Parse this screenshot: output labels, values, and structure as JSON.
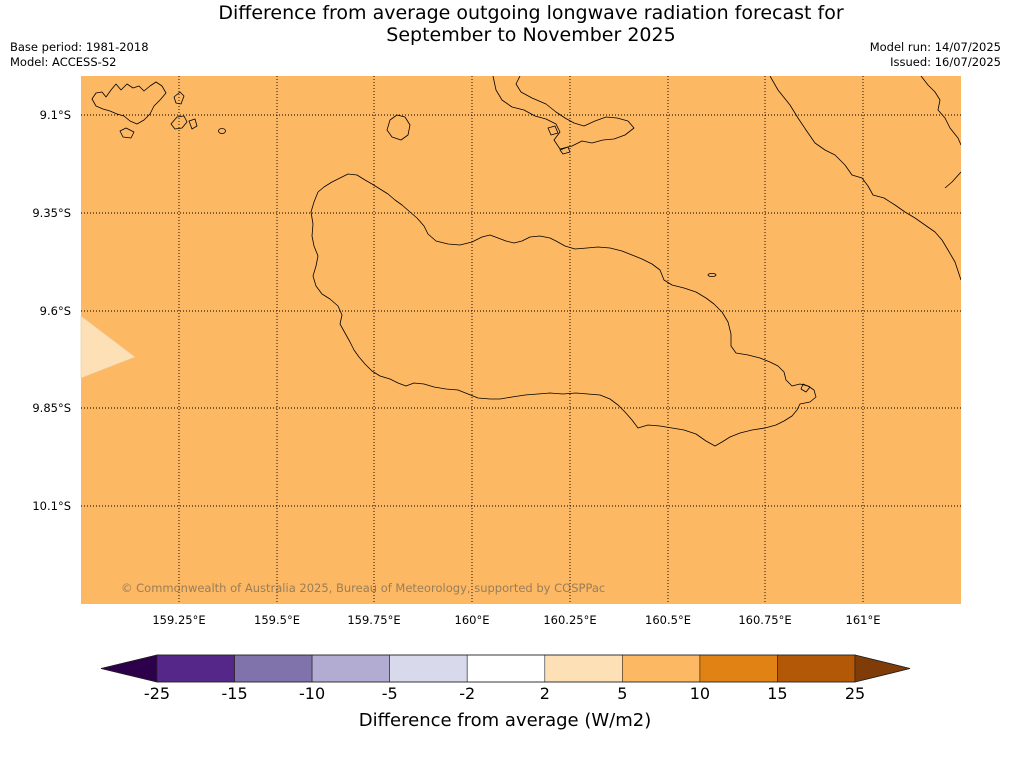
{
  "title": {
    "line1": "Difference from average outgoing longwave radiation forecast for",
    "line2": "September to November 2025"
  },
  "info": {
    "base_period": "Base period: 1981-2018",
    "model": "Model: ACCESS-S2",
    "model_run": "Model run: 14/07/2025",
    "issued": "Issued: 16/07/2025"
  },
  "map": {
    "colors": {
      "main_fill": "#fdb863",
      "pale_fill": "#fee0b6",
      "coastline": "#000000",
      "grid": "#000000",
      "copyright_text": "#555555"
    },
    "lon_labels": [
      "159.25°E",
      "159.5°E",
      "159.75°E",
      "160°E",
      "160.25°E",
      "160.5°E",
      "160.75°E",
      "161°E"
    ],
    "lat_labels": [
      "9.1°S",
      "9.35°S",
      "9.6°S",
      "9.85°S",
      "10.1°S"
    ],
    "copyright": "© Commonwealth of Australia 2025, Bureau of Meteorology, supported by COSPPac"
  },
  "colorbar": {
    "label": "Difference from average (W/m2)",
    "ticks": [
      "-25",
      "-15",
      "-10",
      "-5",
      "-2",
      "2",
      "5",
      "10",
      "15",
      "25"
    ],
    "colors": [
      "#2d004b",
      "#542788",
      "#8073ac",
      "#b2abd2",
      "#d8daeb",
      "#ffffff",
      "#fee0b6",
      "#fdb863",
      "#e08214",
      "#b35806",
      "#7f3b08"
    ],
    "edge_color": "#222222"
  }
}
